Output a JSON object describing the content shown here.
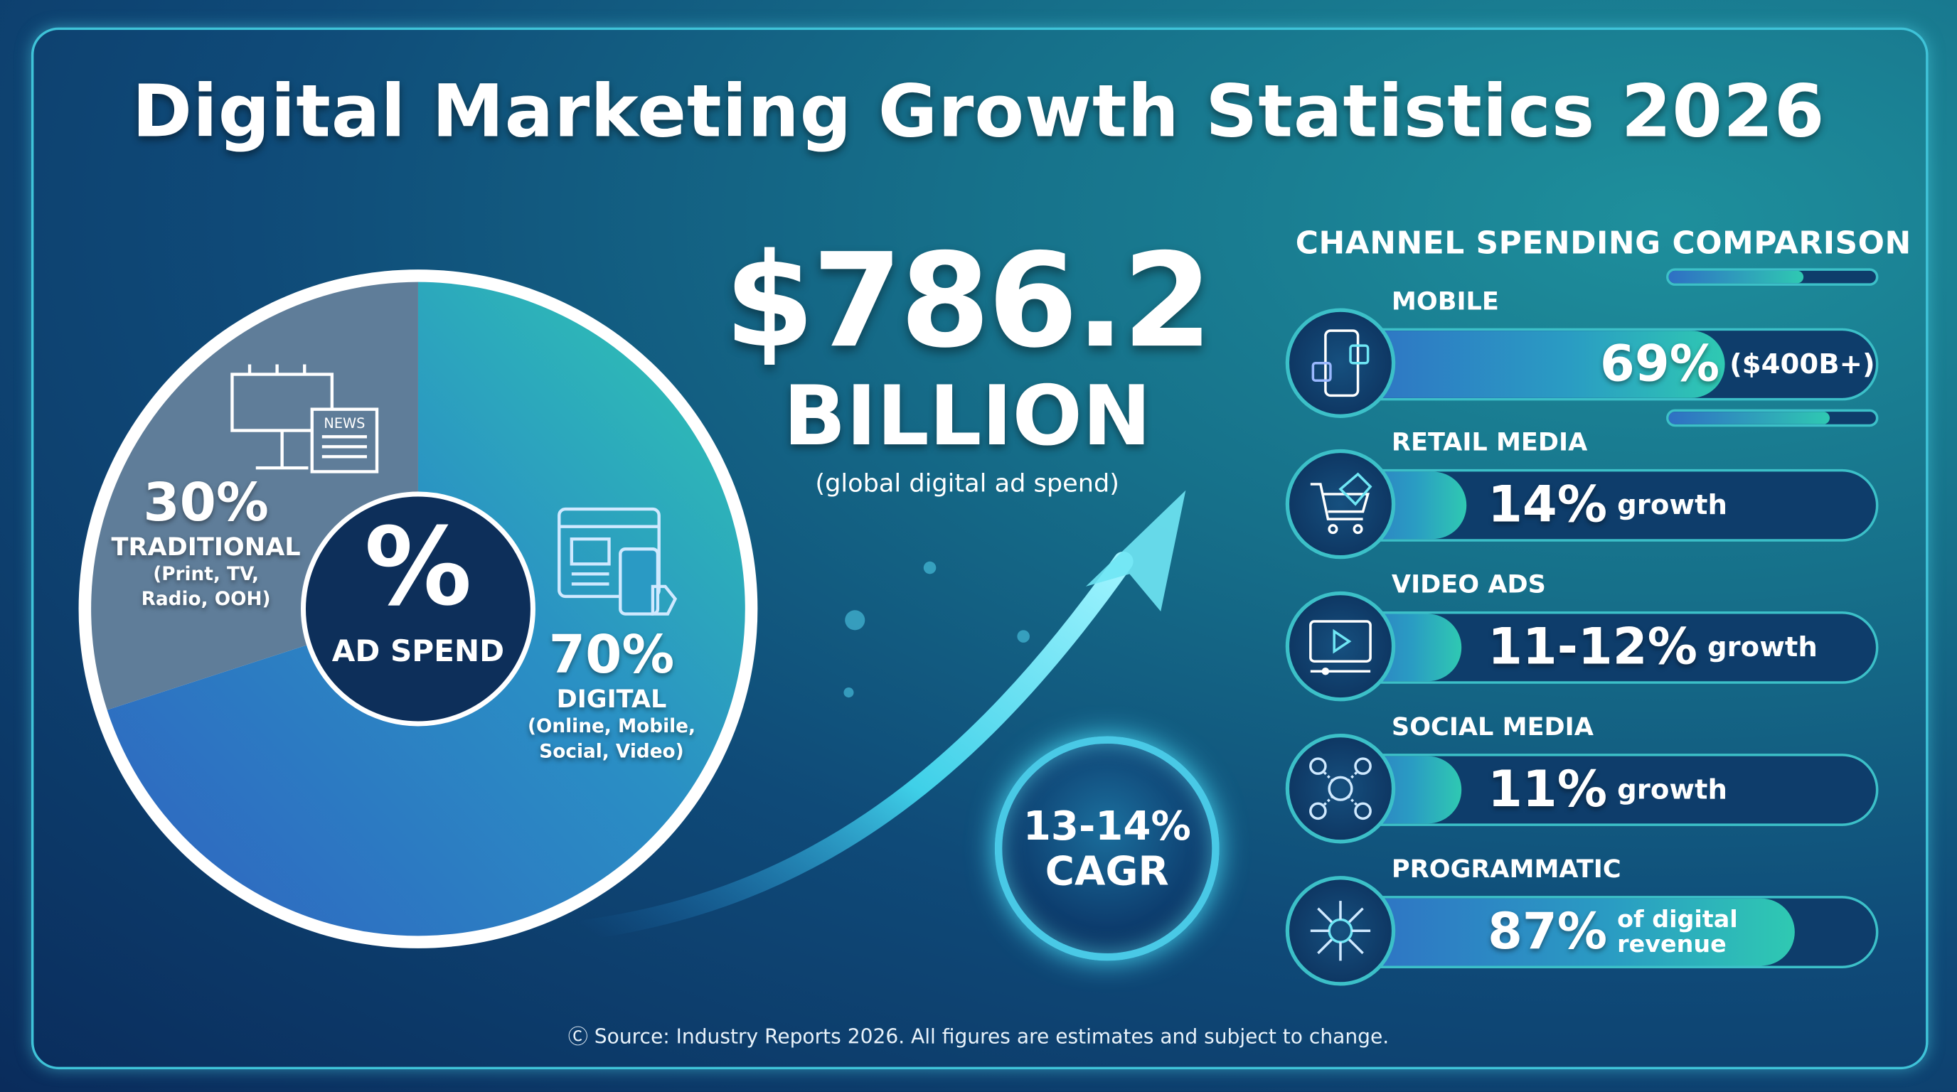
{
  "title": "Digital Marketing Growth Statistics 2026",
  "headline": {
    "value": "$786.2",
    "unit": "BILLION",
    "caption": "(global digital ad spend)"
  },
  "cagr": {
    "line1": "13-14%",
    "line2": "CAGR"
  },
  "chart_data": {
    "type": "pie",
    "center_label": {
      "symbol": "%",
      "text": "AD SPEND"
    },
    "slices": [
      {
        "pct_label": "70%",
        "name": "DIGITAL",
        "detail": "(Online, Mobile, Social, Video)",
        "value": 70,
        "icon": "browser-mobile-icon"
      },
      {
        "pct_label": "30%",
        "name": "TRADITIONAL",
        "detail": "(Print, TV, Radio, OOH)",
        "value": 30,
        "icon": "billboard-newspaper-icon",
        "icon_text": "NEWS"
      }
    ],
    "colors": {
      "digital_start": "#2fc9b2",
      "digital_end": "#2f6fc4",
      "traditional": "#5f7d99"
    }
  },
  "channels": {
    "heading": "CHANNEL SPENDING COMPARISON",
    "items": [
      {
        "label": "MOBILE",
        "value": "69%",
        "suffix": "($400B+)",
        "fill_pct": 72,
        "mini_fill_pct": 65,
        "icon": "smartphone-social-icon"
      },
      {
        "label": "RETAIL MEDIA",
        "value": "14%",
        "suffix": "growth",
        "fill_pct": 24,
        "mini_fill_pct": 78,
        "icon": "shopping-cart-tag-icon"
      },
      {
        "label": "VIDEO ADS",
        "value": "11-12%",
        "suffix": "growth",
        "fill_pct": 23,
        "icon": "video-play-icon"
      },
      {
        "label": "SOCIAL MEDIA",
        "value": "11%",
        "suffix": "growth",
        "fill_pct": 23,
        "icon": "social-network-icon"
      },
      {
        "label": "PROGRAMMATIC",
        "value": "87%",
        "suffix_line1": "of digital",
        "suffix_line2": "revenue",
        "fill_pct": 85,
        "icon": "programmatic-chip-icon"
      }
    ]
  },
  "footer": "Source: Industry Reports 2026. All figures are estimates and subject to change.",
  "colors": {
    "accent": "#3fc3d8",
    "background": "#0f4a78"
  }
}
